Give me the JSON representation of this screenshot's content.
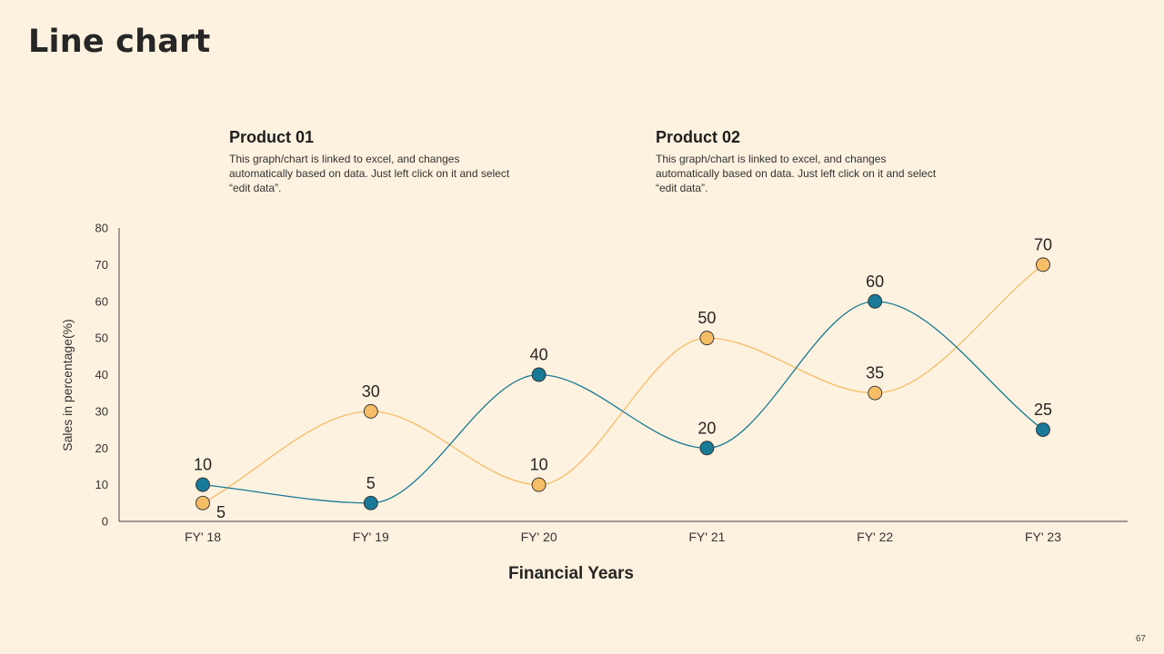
{
  "slide": {
    "title": "Line chart",
    "page_number": "67"
  },
  "legend": [
    {
      "name": "Product 01",
      "description": "This graph/chart is linked to excel, and changes automatically based on data. Just left click on it and select “edit data”."
    },
    {
      "name": "Product 02",
      "description": "This graph/chart is linked to excel, and changes automatically based on data. Just left click on it and select “edit data”."
    }
  ],
  "colors": {
    "product01": "#187A96",
    "product02": "#F5BD66",
    "background": "#FDF1DF"
  },
  "chart_data": {
    "type": "line",
    "categories": [
      "FY' 18",
      "FY' 19",
      "FY' 20",
      "FY' 21",
      "FY' 22",
      "FY' 23"
    ],
    "series": [
      {
        "name": "Product 01",
        "values": [
          10,
          5,
          40,
          20,
          60,
          25
        ]
      },
      {
        "name": "Product 02",
        "values": [
          5,
          30,
          10,
          50,
          35,
          70
        ]
      }
    ],
    "xlabel": "Financial Years",
    "ylabel": "Sales in percentage(%)",
    "ylim": [
      0,
      80
    ],
    "yticks": [
      0,
      10,
      20,
      30,
      40,
      50,
      60,
      70,
      80
    ],
    "smooth": true,
    "grid": false
  }
}
